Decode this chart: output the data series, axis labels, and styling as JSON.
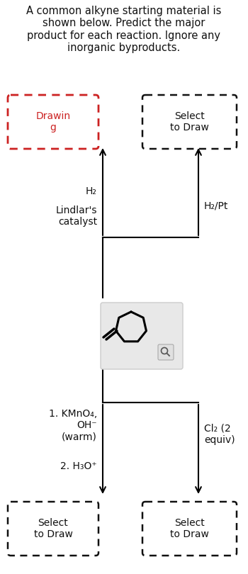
{
  "title": "A common alkyne starting material is\nshown below. Predict the major\nproduct for each reaction. Ignore any\ninorganic byproducts.",
  "title_fontsize": 10.5,
  "bg_color": "#ffffff",
  "box_drawing_label": "Drawin\ng",
  "box_top_right_label": "Select\nto Draw",
  "box_bottom_left_label": "Select\nto Draw",
  "box_bottom_right_label": "Select\nto Draw",
  "left_reagent_top1": "H₂",
  "left_reagent_top2": "Lindlar's\ncatalyst",
  "right_reagent_top": "H₂/Pt",
  "left_reagent_bot1": "1. KMnO₄,\nOH⁻\n(warm)",
  "left_reagent_bot2": "2. H₃O⁺",
  "right_reagent_bot": "Cl₂ (2\nequiv)",
  "dashed_red": "#cc2222",
  "dashed_black": "#111111",
  "arrow_color": "#000000",
  "mol_box_color": "#e8e8e8",
  "mol_box_edge": "#cccccc"
}
